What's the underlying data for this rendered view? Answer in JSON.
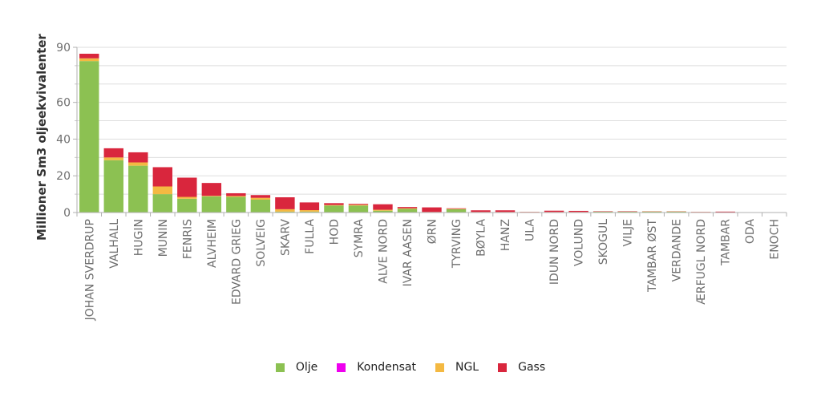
{
  "chart_data": {
    "type": "bar",
    "stacked": true,
    "title": "",
    "xlabel": "",
    "ylabel": "Millioner Sm3 oljeekvivalenter",
    "ylim": [
      0,
      90
    ],
    "yticks": [
      0,
      20,
      40,
      60,
      90
    ],
    "grid": true,
    "legend_position": "bottom",
    "categories": [
      "JOHAN SVERDRUP",
      "VALHALL",
      "HUGIN",
      "MUNIN",
      "FENRIS",
      "ALVHEIM",
      "EDVARD GRIEG",
      "SOLVEIG",
      "SKARV",
      "FULLA",
      "HOD",
      "SYMRA",
      "ALVE NORD",
      "IVAR AASEN",
      "ØRN",
      "TYRVING",
      "BØYLA",
      "HANZ",
      "ULA",
      "IDUN NORD",
      "VOLUND",
      "SKOGUL",
      "VILJE",
      "TAMBAR ØST",
      "VERDANDE",
      "ÆRFUGL NORD",
      "TAMBAR",
      "ODA",
      "ENOCH"
    ],
    "series": [
      {
        "name": "Olje",
        "color": "#8cc152",
        "values": [
          82.5,
          28.5,
          25.5,
          10.0,
          7.5,
          8.8,
          8.5,
          7.0,
          0.5,
          0.5,
          3.8,
          3.8,
          1.0,
          2.0,
          0.2,
          1.8,
          0.2,
          0.2,
          0.2,
          0.2,
          0.2,
          0.5,
          0.5,
          0.5,
          0.5,
          0.1,
          0.1,
          0.0,
          0.0
        ]
      },
      {
        "name": "Kondensat",
        "color": "#ee00ee",
        "values": [
          0,
          0,
          0,
          0,
          0,
          0,
          0,
          0,
          0,
          0,
          0,
          0,
          0,
          0,
          0,
          0,
          0,
          0,
          0,
          0,
          0,
          0,
          0,
          0,
          0,
          0,
          0,
          0,
          0
        ]
      },
      {
        "name": "NGL",
        "color": "#f4b942",
        "values": [
          1.5,
          1.5,
          1.8,
          4.2,
          1.0,
          0.3,
          0.5,
          1.0,
          1.3,
          0.8,
          0.3,
          0.4,
          0.5,
          0.3,
          0.1,
          0.2,
          0.1,
          0.1,
          0.1,
          0.1,
          0.1,
          0.0,
          0.0,
          0.1,
          0.1,
          0.2,
          0.1,
          0.0,
          0.0
        ]
      },
      {
        "name": "Gass",
        "color": "#d9263d",
        "values": [
          2.5,
          5.0,
          5.5,
          10.5,
          10.5,
          7.0,
          1.5,
          1.5,
          6.5,
          4.2,
          1.0,
          0.5,
          3.0,
          0.7,
          2.5,
          0.3,
          0.9,
          0.9,
          0.1,
          0.7,
          0.6,
          0.2,
          0.2,
          0.1,
          0.1,
          0.1,
          0.3,
          0.0,
          0.0
        ]
      }
    ]
  }
}
